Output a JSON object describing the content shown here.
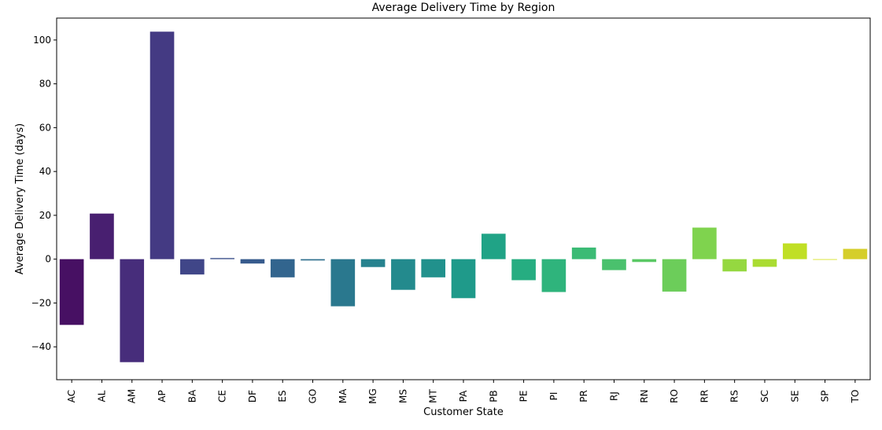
{
  "chart_data": {
    "type": "bar",
    "title": "Average Delivery Time by Region",
    "xlabel": "Customer State",
    "ylabel": "Average Delivery Time (days)",
    "categories": [
      "AC",
      "AL",
      "AM",
      "AP",
      "BA",
      "CE",
      "DF",
      "ES",
      "GO",
      "MA",
      "MG",
      "MS",
      "MT",
      "PA",
      "PB",
      "PE",
      "PI",
      "PR",
      "RJ",
      "RN",
      "RO",
      "RR",
      "RS",
      "SC",
      "SE",
      "SP",
      "TO"
    ],
    "values": [
      -30.0,
      20.8,
      -47.0,
      103.8,
      -7.0,
      0.5,
      -2.0,
      -8.3,
      -0.6,
      -21.5,
      -3.6,
      -14.0,
      -8.3,
      -17.8,
      11.6,
      -9.6,
      -15.0,
      5.3,
      -5.0,
      -1.3,
      -14.8,
      14.4,
      -5.6,
      -3.5,
      7.2,
      -0.3,
      4.7
    ],
    "colors": [
      "#471063",
      "#481f70",
      "#472d7b",
      "#443a83",
      "#404688",
      "#3c508b",
      "#375b8d",
      "#32658e",
      "#2e6f8e",
      "#2a788e",
      "#26828e",
      "#238a8d",
      "#21918c",
      "#1f9a8a",
      "#20a386",
      "#26ad81",
      "#2fb47c",
      "#3bbb75",
      "#4ac16d",
      "#5ac864",
      "#6ccd5a",
      "#7fd34e",
      "#95d840",
      "#aadc32",
      "#c0df25",
      "#d5e21a",
      "#d5ce2a"
    ],
    "yticks": [
      -40,
      -20,
      0,
      20,
      40,
      60,
      80,
      100
    ],
    "ytick_labels": [
      "−40",
      "−20",
      "0",
      "20",
      "40",
      "60",
      "80",
      "100"
    ],
    "ylim": [
      -55,
      110
    ],
    "grid": false,
    "legend": "none"
  }
}
